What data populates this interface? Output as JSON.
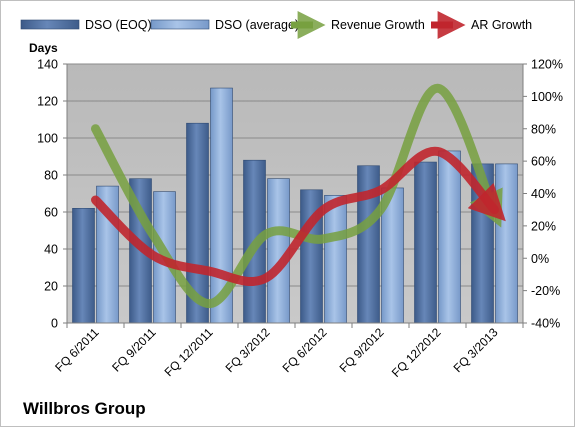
{
  "company": "Willbros Group",
  "chart_data": {
    "type": "bar",
    "categories": [
      "FQ 6/2011",
      "FQ 9/2011",
      "FQ 12/2011",
      "FQ 3/2012",
      "FQ 6/2012",
      "FQ 9/2012",
      "FQ 12/2012",
      "FQ 3/2013"
    ],
    "ylabel": "Days",
    "ylim": [
      0,
      140
    ],
    "yticks": [
      0,
      20,
      40,
      60,
      80,
      100,
      120,
      140
    ],
    "y2lim": [
      -40,
      120
    ],
    "y2ticks": [
      "-40%",
      "-20%",
      "0%",
      "20%",
      "40%",
      "60%",
      "80%",
      "100%",
      "120%"
    ],
    "legend_position": "top",
    "plot_background": "#c0c0c0",
    "bar_series": [
      {
        "name": "DSO (EOQ)",
        "color": "#4f6f9f",
        "values": [
          62,
          78,
          108,
          88,
          72,
          85,
          87,
          86
        ]
      },
      {
        "name": "DSO (average)",
        "color": "#8fb0dc",
        "values": [
          74,
          71,
          127,
          78,
          69,
          73,
          93,
          86
        ]
      }
    ],
    "line_series": [
      {
        "name": "Revenue Growth",
        "color": "#77a040",
        "axis": "right",
        "values": [
          80,
          15,
          -28,
          15,
          12,
          30,
          105,
          28
        ]
      },
      {
        "name": "AR Growth",
        "color": "#c0262d",
        "axis": "right",
        "values": [
          36,
          2,
          -8,
          -12,
          30,
          42,
          66,
          30
        ]
      }
    ]
  }
}
